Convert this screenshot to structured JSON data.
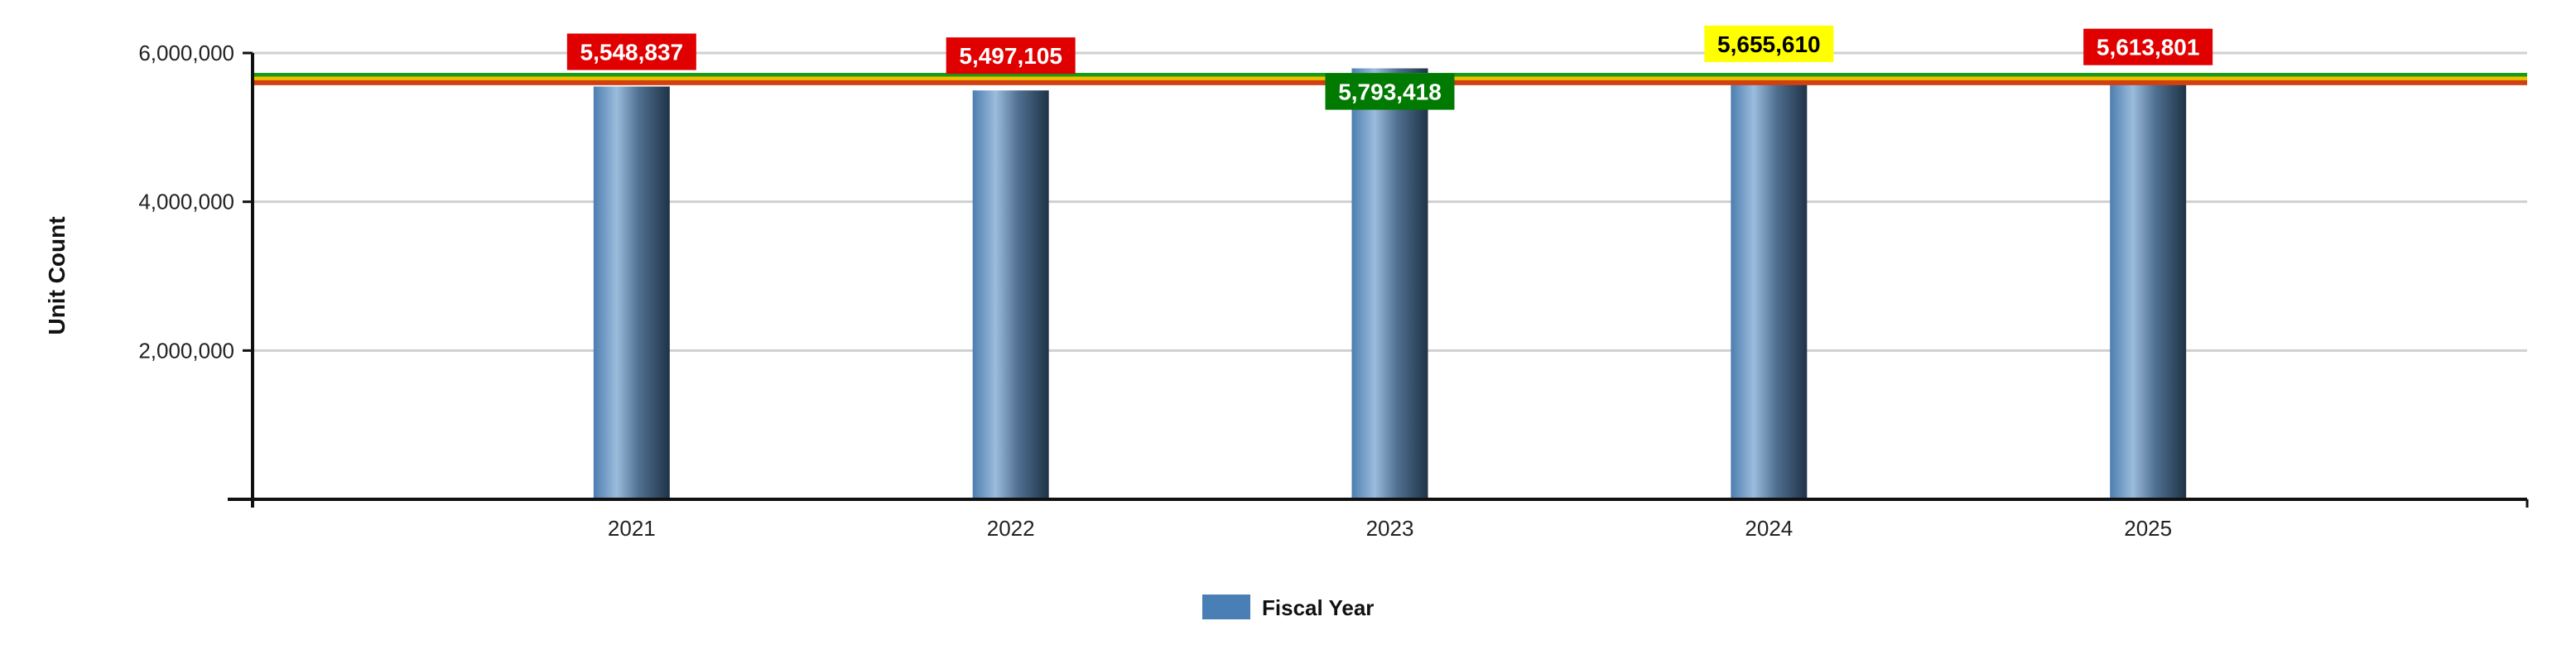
{
  "chart_data": {
    "type": "bar",
    "title": "",
    "xlabel": "",
    "ylabel": "Unit Count",
    "categories": [
      "2021",
      "2022",
      "2023",
      "2024",
      "2025"
    ],
    "series": [
      {
        "name": "Fiscal Year",
        "values": [
          5548837,
          5497105,
          5793418,
          5655610,
          5613801
        ]
      }
    ],
    "data_labels": [
      "5,548,837",
      "5,497,105",
      "5,793,418",
      "5,655,610",
      "5,613,801"
    ],
    "data_label_colors": [
      "#e00000",
      "#e00000",
      "#007a00",
      "#ffff00",
      "#e00000"
    ],
    "data_label_text_colors": [
      "#ffffff",
      "#ffffff",
      "#ffffff",
      "#000000",
      "#ffffff"
    ],
    "ylim": [
      0,
      6000000
    ],
    "yticks": [
      0,
      2000000,
      4000000,
      6000000
    ],
    "ytick_labels": [
      "",
      "2,000,000",
      "4,000,000",
      "6,000,000"
    ],
    "reference_lines": [
      {
        "value": 5700000,
        "color": "#1a9a1a"
      },
      {
        "value": 5650000,
        "color": "#f0c000"
      },
      {
        "value": 5600000,
        "color": "#d04010"
      }
    ],
    "grid": true,
    "legend_position": "bottom-center",
    "bar_color": "#4a7fb5"
  }
}
